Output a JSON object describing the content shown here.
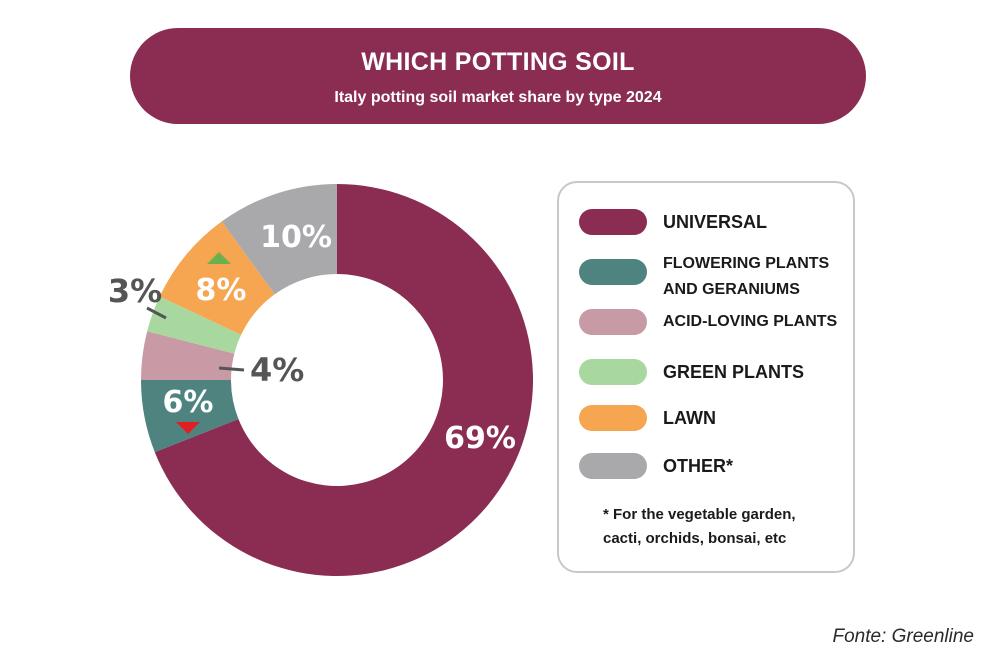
{
  "title": "WHICH POTTING SOIL",
  "subtitle": "Italy potting soil market share by type 2024",
  "chart_data": {
    "type": "pie",
    "donut": true,
    "unit": "%",
    "slices": [
      {
        "label": "UNIVERSAL",
        "value": 69,
        "color": "#8b2c52",
        "value_label": "69%"
      },
      {
        "label": "FLOWERING PLANTS AND GERANIUMS",
        "value": 6,
        "color": "#4f8380",
        "value_label": "6%",
        "trend": "down"
      },
      {
        "label": "ACID-LOVING PLANTS",
        "value": 4,
        "color": "#c89aa6",
        "value_label": "4%"
      },
      {
        "label": "GREEN PLANTS",
        "value": 3,
        "color": "#a8d8a0",
        "value_label": "3%"
      },
      {
        "label": "LAWN",
        "value": 8,
        "color": "#f6a651",
        "value_label": "8%",
        "trend": "up"
      },
      {
        "label": "OTHER",
        "value": 10,
        "color": "#a9a9ac",
        "value_label": "10%"
      }
    ],
    "legend_placement": "right"
  },
  "legend": {
    "items": [
      {
        "lines": [
          "UNIVERSAL"
        ],
        "color": "#8b2c52"
      },
      {
        "lines": [
          "FLOWERING PLANTS",
          "AND GERANIUMS"
        ],
        "color": "#4f8380"
      },
      {
        "lines": [
          "ACID-LOVING PLANTS"
        ],
        "color": "#c89aa6"
      },
      {
        "lines": [
          "GREEN PLANTS"
        ],
        "color": "#a8d8a0"
      },
      {
        "lines": [
          "LAWN"
        ],
        "color": "#f6a651"
      },
      {
        "lines": [
          "OTHER*"
        ],
        "color": "#a9a9ac"
      }
    ],
    "note_lines": [
      "* For the vegetable garden,",
      "cacti, orchids, bonsai, etc"
    ]
  },
  "trend_colors": {
    "up": "#6ab04c",
    "down": "#e02020"
  },
  "source": "Fonte: Greenline"
}
